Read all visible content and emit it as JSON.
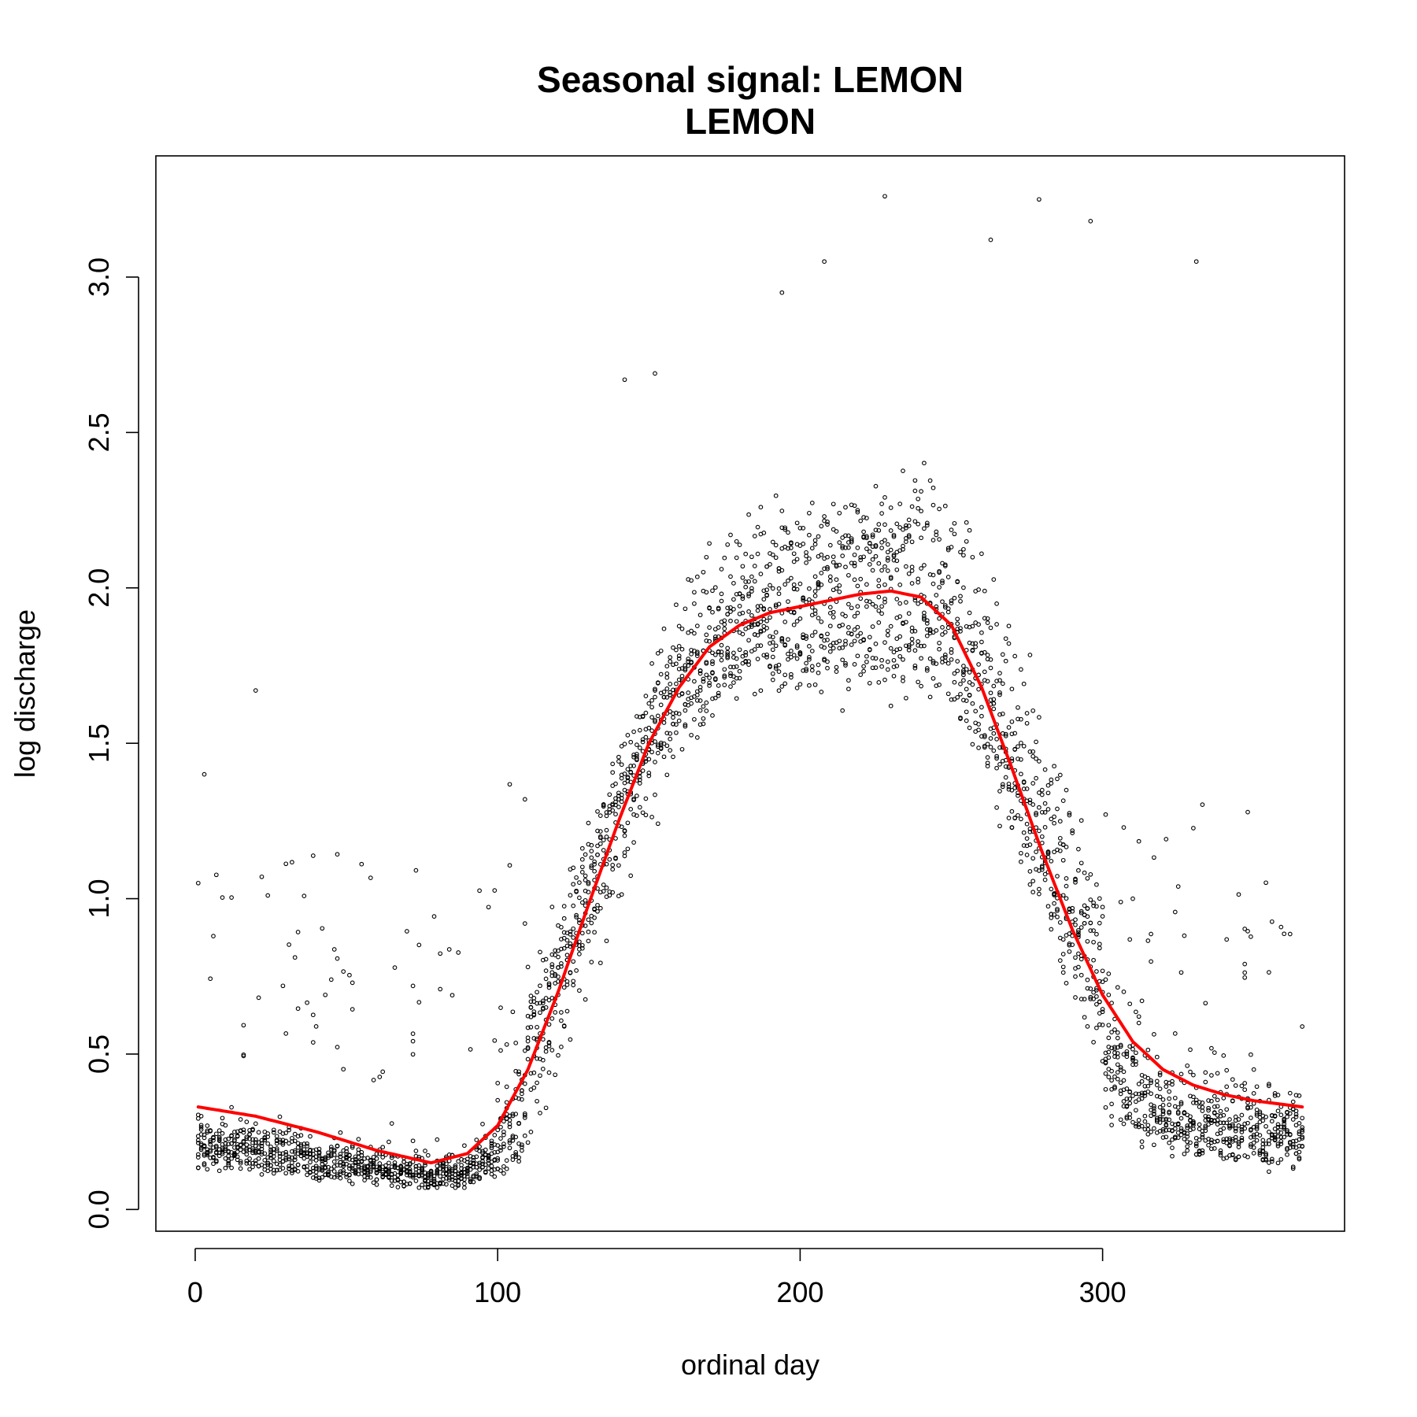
{
  "chart_data": {
    "type": "scatter",
    "title": "Seasonal signal: LEMON",
    "subtitle": "LEMON",
    "xlabel": "ordinal day",
    "ylabel": "log discharge",
    "xlim": [
      -13,
      380
    ],
    "ylim": [
      -0.07,
      3.39
    ],
    "x_ticks": [
      0,
      100,
      200,
      300
    ],
    "x_tick_labels": [
      "0",
      "100",
      "200",
      "300"
    ],
    "y_ticks": [
      0.0,
      0.5,
      1.0,
      1.5,
      2.0,
      2.5,
      3.0
    ],
    "y_tick_labels": [
      "0.0",
      "0.5",
      "1.0",
      "1.5",
      "2.0",
      "2.5",
      "3.0"
    ],
    "grid": false,
    "legend": "none",
    "colors": {
      "points": "#000000",
      "smooth": "#ff0000"
    },
    "point_series": {
      "name": "",
      "description_x": "ordinal day 1-366, multiple years per day",
      "years_per_day": 9
    },
    "seasonal_curve": {
      "x": [
        1,
        20,
        40,
        60,
        78,
        90,
        100,
        110,
        120,
        130,
        140,
        150,
        160,
        170,
        180,
        190,
        200,
        210,
        220,
        230,
        240,
        250,
        260,
        270,
        280,
        290,
        300,
        310,
        320,
        330,
        340,
        350,
        366
      ],
      "y": [
        0.33,
        0.3,
        0.25,
        0.19,
        0.15,
        0.18,
        0.27,
        0.45,
        0.7,
        0.98,
        1.25,
        1.5,
        1.68,
        1.81,
        1.88,
        1.92,
        1.94,
        1.96,
        1.98,
        1.99,
        1.97,
        1.88,
        1.68,
        1.42,
        1.15,
        0.9,
        0.69,
        0.54,
        0.45,
        0.4,
        0.37,
        0.35,
        0.33
      ]
    },
    "highlight_points": [
      {
        "x": 20,
        "y": 1.67
      },
      {
        "x": 228,
        "y": 3.26
      },
      {
        "x": 279,
        "y": 3.25
      },
      {
        "x": 263,
        "y": 3.12
      },
      {
        "x": 208,
        "y": 3.05
      },
      {
        "x": 331,
        "y": 3.05
      },
      {
        "x": 194,
        "y": 2.95
      },
      {
        "x": 152,
        "y": 2.69
      },
      {
        "x": 142,
        "y": 2.67
      },
      {
        "x": 296,
        "y": 3.18
      },
      {
        "x": 3,
        "y": 1.4
      },
      {
        "x": 1,
        "y": 1.05
      }
    ]
  }
}
